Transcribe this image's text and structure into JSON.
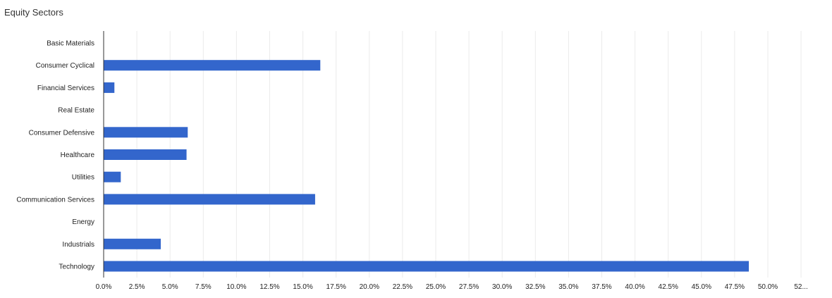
{
  "chart_data": {
    "type": "bar",
    "orientation": "horizontal",
    "title": "Equity Sectors",
    "categories": [
      "Basic Materials",
      "Consumer Cyclical",
      "Financial Services",
      "Real Estate",
      "Consumer Defensive",
      "Healthcare",
      "Utilities",
      "Communication Services",
      "Energy",
      "Industrials",
      "Technology"
    ],
    "values": [
      0,
      16.31,
      0.81,
      0,
      6.33,
      6.24,
      1.29,
      15.92,
      0,
      4.3,
      48.57
    ],
    "xlim": [
      0,
      52.5
    ],
    "x_ticks": [
      "0.0%",
      "2.5%",
      "5.0%",
      "7.5%",
      "10.0%",
      "12.5%",
      "15.0%",
      "17.5%",
      "20.0%",
      "22.5%",
      "25.0%",
      "27.5%",
      "30.0%",
      "32.5%",
      "35.0%",
      "37.5%",
      "40.0%",
      "42.5%",
      "45.0%",
      "47.5%",
      "50.0%",
      "52..."
    ],
    "xlabel": "",
    "ylabel": "",
    "grid": true,
    "legend": "none",
    "bar_color": "#3366cc"
  }
}
